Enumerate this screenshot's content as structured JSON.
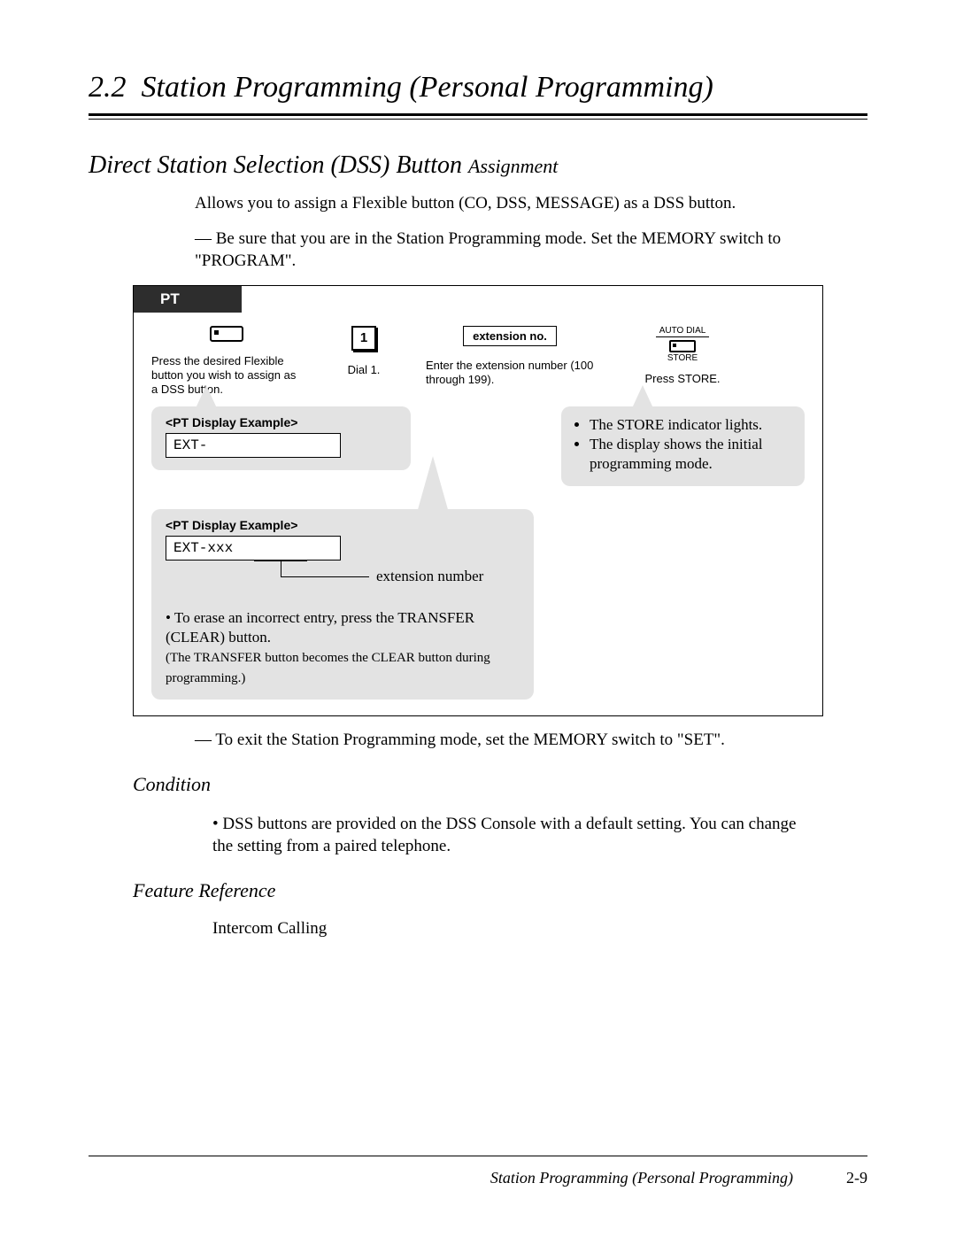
{
  "section": {
    "number": "2.2",
    "title": "Station Programming (Personal Programming)"
  },
  "subsection": {
    "title_main": "Direct Station Selection (DSS) Button",
    "title_small": "Assignment"
  },
  "intro": {
    "line1": "Allows you to assign a Flexible button (CO, DSS, MESSAGE) as a DSS button.",
    "line2": "— Be sure that you are in the Station Programming mode. Set the MEMORY switch to \"PROGRAM\"."
  },
  "diagram": {
    "tab": "PT",
    "step1_label": "Press the desired Flexible button you wish to assign as a DSS button.",
    "step2_digit": "1",
    "step2_label": "Dial 1.",
    "step3_box": "extension no.",
    "step3_label": "Enter the extension number (100 through 199).",
    "step4_top": "AUTO DIAL",
    "step4_bottom": "STORE",
    "step4_label": "Press STORE.",
    "callout_a_title": "<PT Display Example>",
    "callout_a_value": "EXT-",
    "callout_b_line1": "The STORE indicator lights.",
    "callout_b_line2": "The display shows the initial programming mode.",
    "callout_c_title": "<PT Display Example>",
    "callout_c_value": "EXT-xxx",
    "callout_c_extlabel": "extension number",
    "erase_main": "To erase an incorrect entry, press the TRANSFER (CLEAR) button.",
    "erase_sub": "(The TRANSFER button becomes the CLEAR button during programming.)"
  },
  "exit_note": "— To exit the Station Programming mode, set the MEMORY switch to \"SET\".",
  "condition": {
    "heading": "Condition",
    "text": "DSS buttons are provided on the DSS Console with a default setting. You can change the setting from a paired telephone."
  },
  "feature_ref": {
    "heading": "Feature Reference",
    "text": "Intercom Calling"
  },
  "footer": {
    "title": "Station Programming (Personal Programming)",
    "page": "2-9"
  }
}
